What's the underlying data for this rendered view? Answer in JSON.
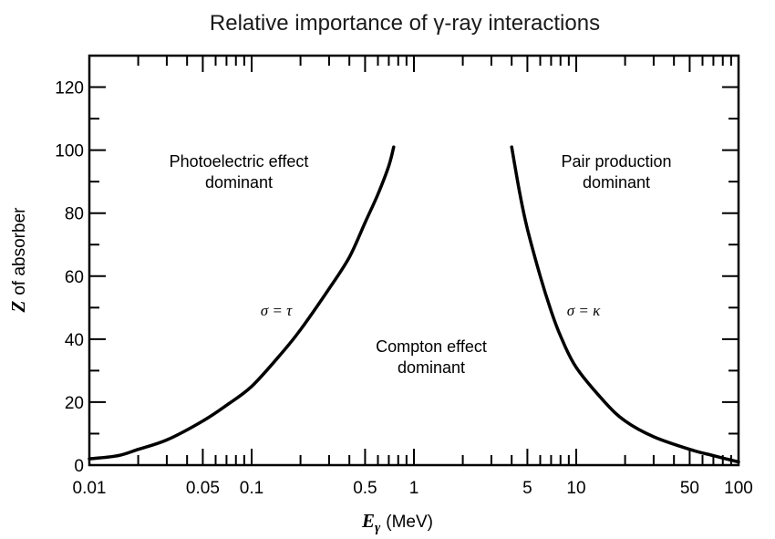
{
  "chart_data": {
    "type": "line",
    "title": "Relative importance of γ-ray interactions",
    "xlabel_symbol": "E",
    "xlabel_subscript": "γ",
    "xlabel_unit": "(MeV)",
    "ylabel_symbol": "Z",
    "ylabel_rest": "of absorber",
    "x_scale": "log",
    "xlim": [
      0.01,
      100
    ],
    "ylim": [
      0,
      130
    ],
    "x_ticks": [
      {
        "value": 0.01,
        "label": "0.01"
      },
      {
        "value": 0.05,
        "label": "0.05"
      },
      {
        "value": 0.1,
        "label": "0.1"
      },
      {
        "value": 0.5,
        "label": "0.5"
      },
      {
        "value": 1,
        "label": "1"
      },
      {
        "value": 5,
        "label": "5"
      },
      {
        "value": 10,
        "label": "10"
      },
      {
        "value": 50,
        "label": "50"
      },
      {
        "value": 100,
        "label": "100"
      }
    ],
    "y_ticks": [
      {
        "value": 0,
        "label": "0"
      },
      {
        "value": 20,
        "label": "20"
      },
      {
        "value": 40,
        "label": "40"
      },
      {
        "value": 60,
        "label": "60"
      },
      {
        "value": 80,
        "label": "80"
      },
      {
        "value": 100,
        "label": "100"
      },
      {
        "value": 120,
        "label": "120"
      }
    ],
    "grid": false,
    "series": [
      {
        "label": "σ = τ",
        "x": [
          0.01,
          0.015,
          0.02,
          0.03,
          0.05,
          0.07,
          0.1,
          0.15,
          0.2,
          0.3,
          0.4,
          0.5,
          0.6,
          0.7,
          0.75
        ],
        "y": [
          2,
          3,
          5,
          8,
          14,
          19,
          25,
          35,
          43,
          56,
          66,
          77,
          86,
          95,
          101
        ]
      },
      {
        "label": "σ = κ",
        "x": [
          4.0,
          4.5,
          5,
          6,
          7,
          8,
          10,
          15,
          20,
          30,
          50,
          70,
          100
        ],
        "y": [
          101,
          86,
          75,
          60,
          49,
          41,
          31,
          20,
          14,
          9,
          5,
          3,
          1
        ]
      }
    ],
    "annotations": {
      "photoelectric": [
        "Photoelectric effect",
        "dominant"
      ],
      "pair": [
        "Pair production",
        "dominant"
      ],
      "compton": [
        "Compton effect",
        "dominant"
      ]
    }
  }
}
